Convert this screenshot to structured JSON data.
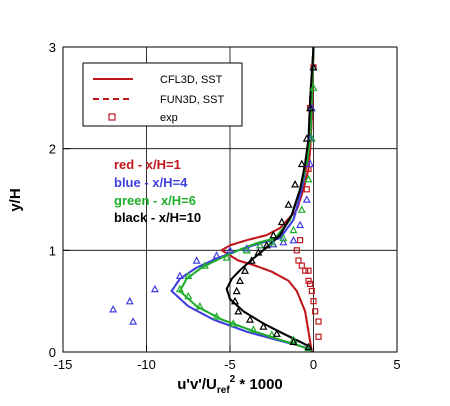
{
  "chart_data": {
    "type": "line",
    "title": "",
    "xlabel": {
      "base": "u'v'/U",
      "sub": "ref",
      "sup": "2",
      "rest": " * 1000"
    },
    "ylabel": "y/H",
    "xlim": [
      -15,
      5
    ],
    "ylim": [
      0,
      3
    ],
    "xticks": [
      -15,
      -10,
      -5,
      0,
      5
    ],
    "yticks": [
      0,
      1,
      2,
      3
    ],
    "grid": true,
    "colors": {
      "red": "#c0171c",
      "blue": "#3f3fdf",
      "green": "#1fae2a",
      "black": "#000000"
    },
    "legend": {
      "placement": "top-left",
      "entries": [
        {
          "label": "CFL3D, SST",
          "style": "solid"
        },
        {
          "label": "FUN3D, SST",
          "style": "dashed"
        },
        {
          "label": "exp",
          "style": "marker"
        }
      ]
    },
    "annotations": [
      {
        "text": "red - x/H=1",
        "color": "red"
      },
      {
        "text": "blue - x/H=4",
        "color": "blue"
      },
      {
        "text": "green - x/H=6",
        "color": "green"
      },
      {
        "text": "black - x/H=10",
        "color": "black"
      }
    ],
    "series": [
      {
        "station": "x/H=1",
        "color": "red",
        "kind": "cfd",
        "x": [
          -0.1,
          -0.15,
          -0.2,
          -0.3,
          -0.5,
          -1.0,
          -1.5,
          -2.5,
          -3.5,
          -4.5,
          -5.5,
          -5.0,
          -4.0,
          -2.8,
          -2.0,
          -1.0,
          -0.6,
          -0.3,
          -0.2,
          -0.1,
          -0.05,
          0.0
        ],
        "y": [
          0.0,
          0.05,
          0.1,
          0.2,
          0.4,
          0.6,
          0.7,
          0.79,
          0.85,
          0.9,
          1.0,
          1.05,
          1.1,
          1.15,
          1.22,
          1.4,
          1.6,
          1.8,
          2.0,
          2.3,
          2.6,
          3.0
        ]
      },
      {
        "station": "x/H=4",
        "color": "blue",
        "kind": "cfd",
        "x": [
          -0.2,
          -0.8,
          -2.0,
          -4.0,
          -6.0,
          -7.5,
          -8.5,
          -8.0,
          -7.0,
          -5.8,
          -4.5,
          -3.2,
          -2.0,
          -1.2,
          -0.7,
          -0.4,
          -0.2,
          -0.1,
          0.0
        ],
        "y": [
          0.03,
          0.06,
          0.11,
          0.2,
          0.32,
          0.45,
          0.6,
          0.72,
          0.83,
          0.92,
          1.0,
          1.07,
          1.12,
          1.3,
          1.6,
          1.85,
          2.1,
          2.5,
          3.0
        ]
      },
      {
        "station": "x/H=6",
        "color": "green",
        "kind": "cfd",
        "x": [
          -0.2,
          -0.8,
          -2.0,
          -3.5,
          -5.5,
          -7.0,
          -8.0,
          -7.6,
          -6.7,
          -5.6,
          -4.5,
          -3.4,
          -2.3,
          -1.4,
          -0.8,
          -0.4,
          -0.2,
          -0.1,
          0.0
        ],
        "y": [
          0.02,
          0.06,
          0.12,
          0.2,
          0.32,
          0.45,
          0.6,
          0.72,
          0.83,
          0.92,
          1.0,
          1.07,
          1.12,
          1.3,
          1.6,
          1.85,
          2.1,
          2.5,
          3.0
        ]
      },
      {
        "station": "x/H=10",
        "color": "black",
        "kind": "cfd",
        "x": [
          -0.2,
          -0.8,
          -1.8,
          -3.0,
          -4.2,
          -5.0,
          -5.2,
          -4.9,
          -4.3,
          -3.6,
          -2.8,
          -2.0,
          -1.3,
          -0.8,
          -0.5,
          -0.3,
          -0.2,
          0.0
        ],
        "y": [
          0.05,
          0.1,
          0.18,
          0.28,
          0.4,
          0.52,
          0.62,
          0.72,
          0.82,
          0.92,
          1.03,
          1.15,
          1.35,
          1.6,
          1.85,
          2.1,
          2.5,
          3.0
        ]
      },
      {
        "station": "x/H=1",
        "color": "red",
        "kind": "exp",
        "marker": "square",
        "x": [
          0.3,
          0.3,
          0.1,
          0.0,
          -0.1,
          -0.2,
          -0.3,
          -0.3,
          -0.5,
          -0.7,
          -0.9,
          -1.0,
          -0.8,
          -0.4,
          -0.3,
          -0.2,
          0.0
        ],
        "y": [
          0.15,
          0.3,
          0.4,
          0.5,
          0.6,
          0.67,
          0.7,
          0.8,
          0.8,
          0.85,
          0.9,
          1.0,
          1.1,
          1.6,
          1.8,
          2.4,
          2.8
        ]
      },
      {
        "station": "x/H=4",
        "color": "blue",
        "kind": "exp",
        "marker": "triangle",
        "x": [
          -12.0,
          -11.0,
          -10.8,
          -9.5,
          -8.0,
          -7.0,
          -5.8,
          -5.0,
          -4.0,
          -3.2,
          -2.4,
          -1.8,
          -1.2,
          -0.8,
          -0.4,
          -0.2,
          -0.2,
          -0.1,
          0.0
        ],
        "y": [
          0.42,
          0.5,
          0.3,
          0.62,
          0.75,
          0.9,
          0.95,
          1.0,
          1.02,
          1.05,
          1.06,
          1.08,
          1.1,
          1.25,
          1.5,
          1.85,
          2.1,
          2.4,
          2.8
        ]
      },
      {
        "station": "x/H=6",
        "color": "green",
        "kind": "exp",
        "marker": "triangle",
        "x": [
          -0.3,
          -1.2,
          -2.5,
          -3.6,
          -4.8,
          -5.8,
          -6.8,
          -7.5,
          -8.0,
          -7.5,
          -6.5,
          -5.2,
          -4.0,
          -3.2,
          -2.5,
          -1.8,
          -1.2,
          -0.7,
          -0.3,
          -0.1,
          0.0
        ],
        "y": [
          0.04,
          0.12,
          0.17,
          0.22,
          0.28,
          0.35,
          0.45,
          0.55,
          0.62,
          0.75,
          0.85,
          0.93,
          1.0,
          1.05,
          1.08,
          1.12,
          1.2,
          1.4,
          1.7,
          2.1,
          2.6
        ]
      },
      {
        "station": "x/H=10",
        "color": "black",
        "kind": "exp",
        "marker": "triangle",
        "x": [
          -0.3,
          -1.2,
          -2.2,
          -3.0,
          -3.8,
          -4.5,
          -4.7,
          -4.6,
          -4.4,
          -4.1,
          -3.7,
          -3.3,
          -2.8,
          -2.4,
          -1.9,
          -1.5,
          -1.1,
          -0.7,
          -0.4,
          -0.2,
          0.0
        ],
        "y": [
          0.05,
          0.1,
          0.18,
          0.25,
          0.32,
          0.4,
          0.5,
          0.6,
          0.7,
          0.8,
          0.9,
          0.98,
          1.05,
          1.15,
          1.28,
          1.45,
          1.65,
          1.85,
          2.1,
          2.4,
          2.8
        ]
      }
    ]
  }
}
